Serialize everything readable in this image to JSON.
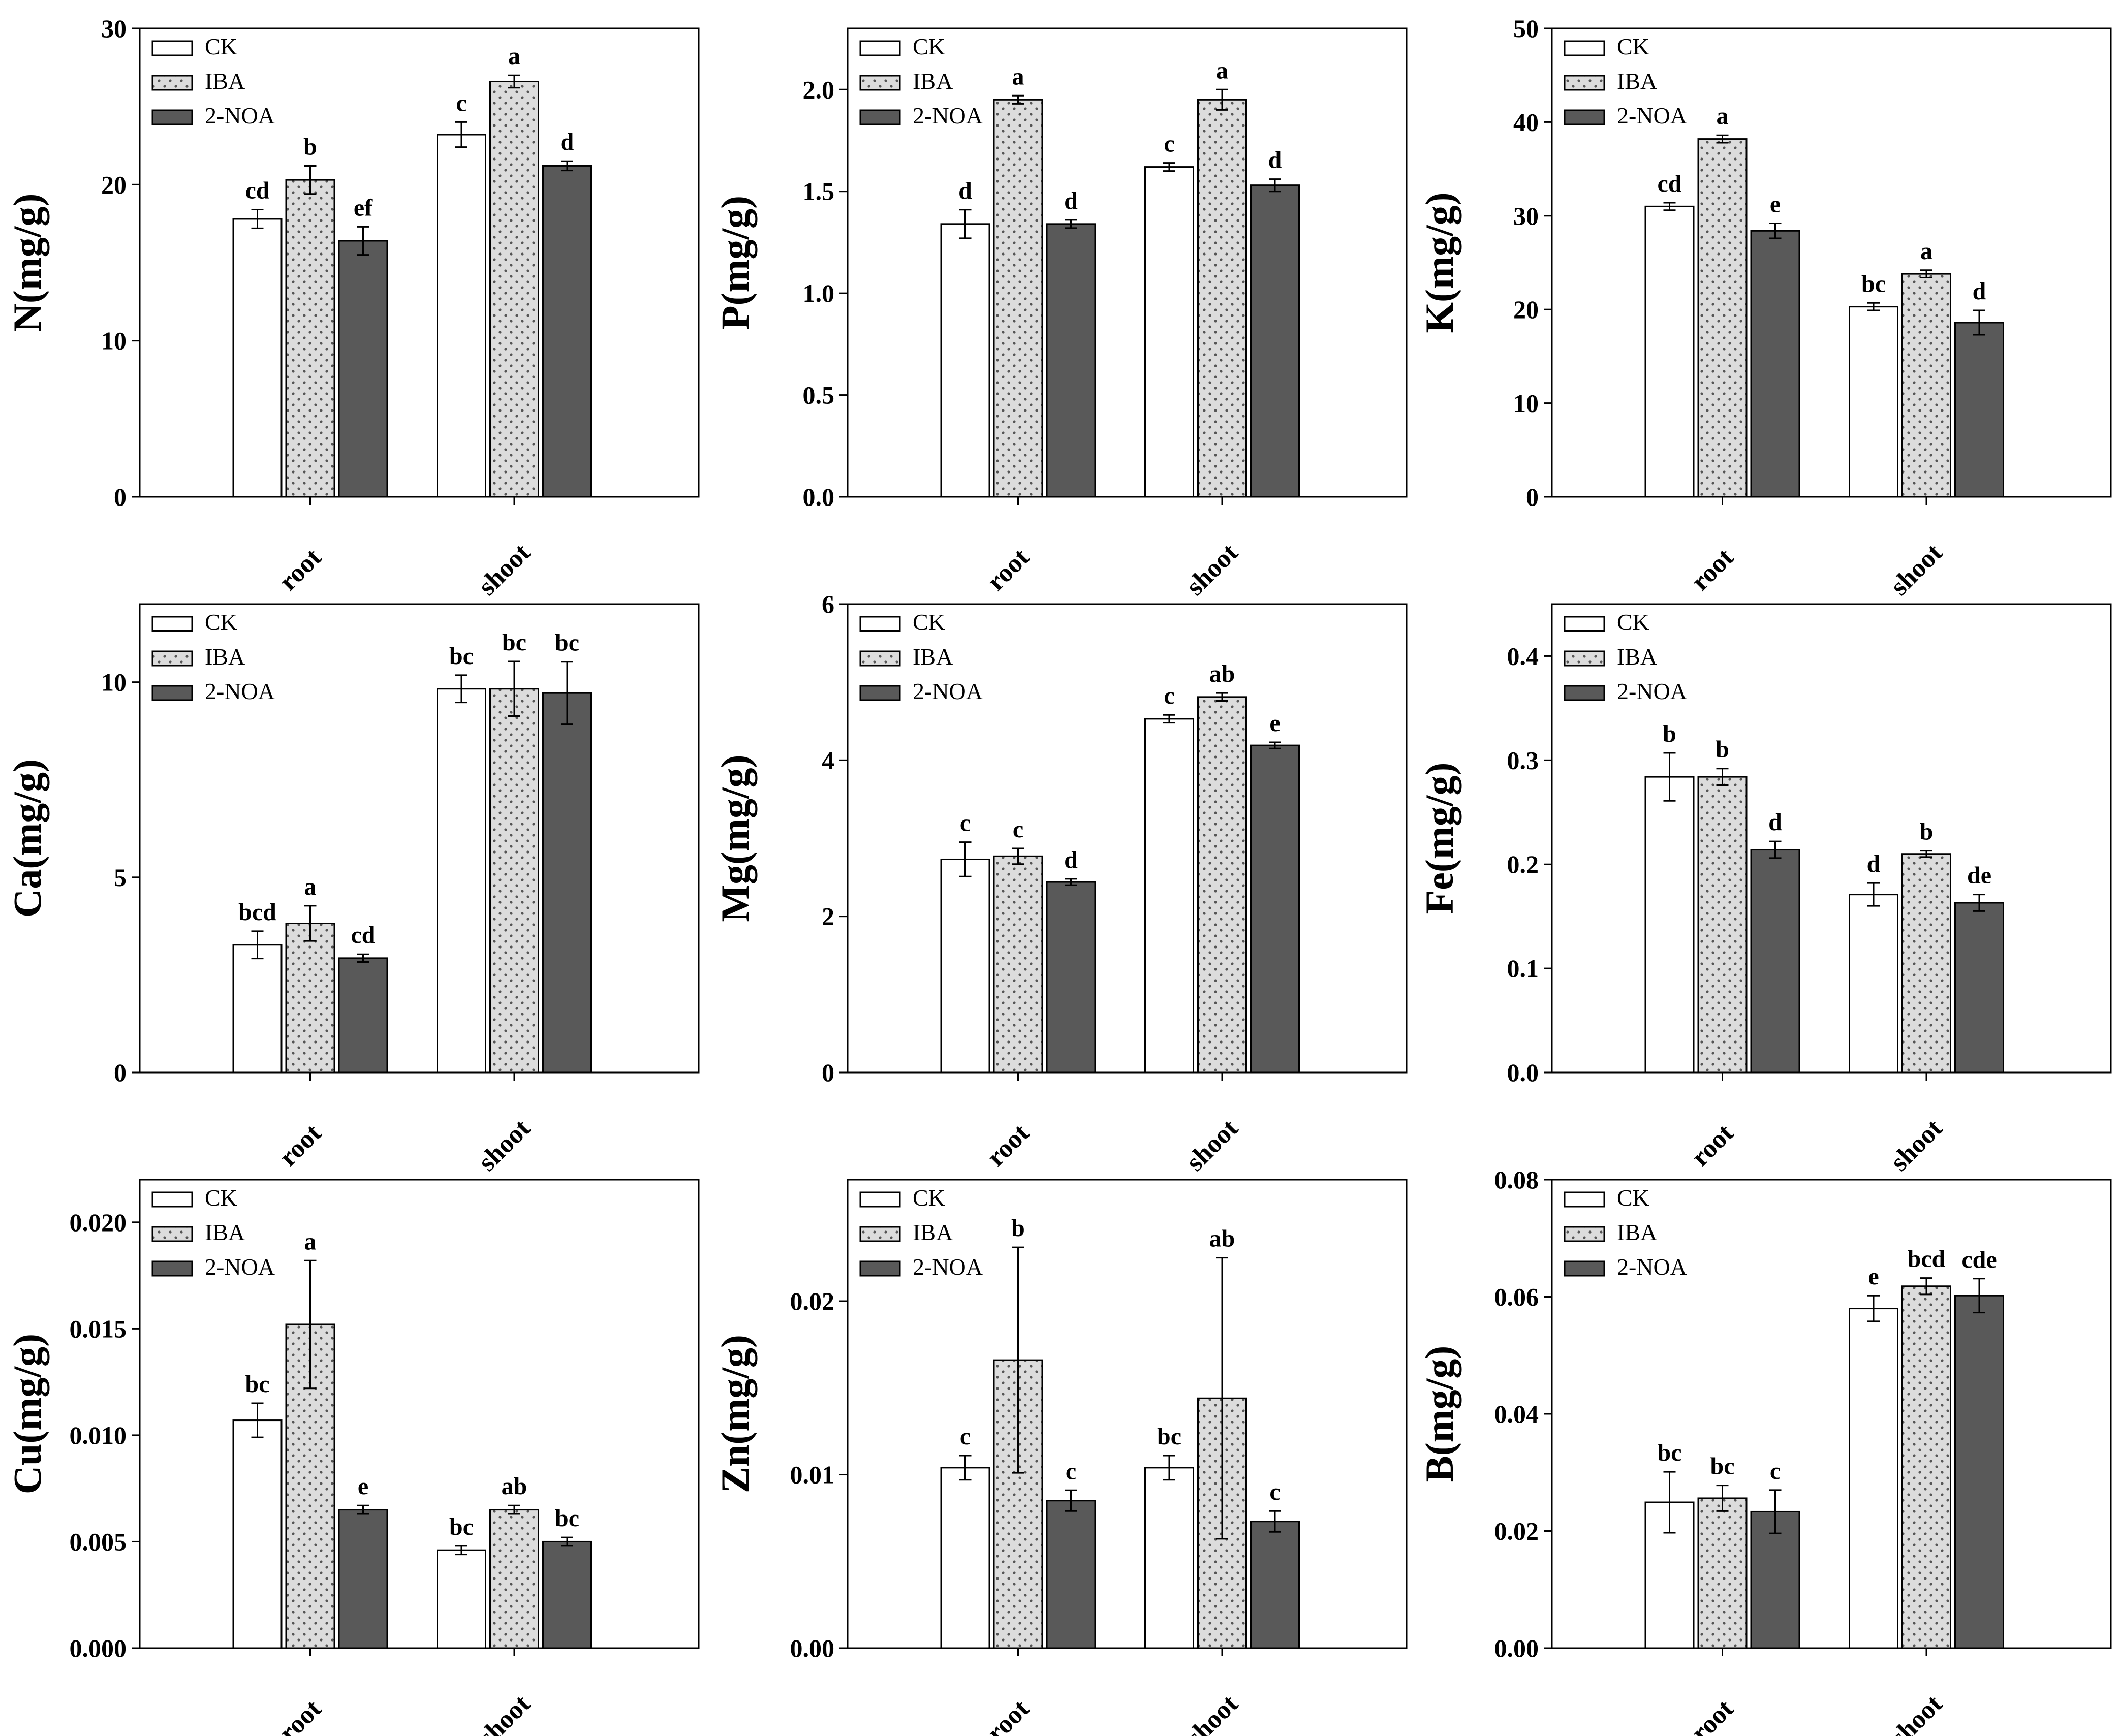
{
  "colors": {
    "CK": "#ffffff",
    "IBA": "#dcdcdc",
    "2-NOA": "#595959",
    "axis": "#000000"
  },
  "legend": [
    "CK",
    "IBA",
    "2-NOA"
  ],
  "chart_data": [
    {
      "type": "bar",
      "ylabel": "N(mg/g)",
      "categories": [
        "root",
        "shoot"
      ],
      "ylim": [
        0,
        30
      ],
      "yticks": [
        "0",
        "10",
        "20",
        "30"
      ],
      "series": [
        {
          "name": "CK",
          "values": [
            17.8,
            23.2
          ],
          "errors": [
            0.6,
            0.8
          ],
          "labels": [
            "cd",
            "c"
          ]
        },
        {
          "name": "IBA",
          "values": [
            20.3,
            26.6
          ],
          "errors": [
            0.9,
            0.4
          ],
          "labels": [
            "b",
            "a"
          ]
        },
        {
          "name": "2-NOA",
          "values": [
            16.4,
            21.2
          ],
          "errors": [
            0.9,
            0.3
          ],
          "labels": [
            "ef",
            "d"
          ]
        }
      ]
    },
    {
      "type": "bar",
      "ylabel": "P(mg/g)",
      "categories": [
        "root",
        "shoot"
      ],
      "ylim": [
        0,
        2.3
      ],
      "yticks": [
        "0.0",
        "0.5",
        "1.0",
        "1.5",
        "2.0"
      ],
      "series": [
        {
          "name": "CK",
          "values": [
            1.34,
            1.62
          ],
          "errors": [
            0.07,
            0.02
          ],
          "labels": [
            "d",
            "c"
          ]
        },
        {
          "name": "IBA",
          "values": [
            1.95,
            1.95
          ],
          "errors": [
            0.02,
            0.05
          ],
          "labels": [
            "a",
            "a"
          ]
        },
        {
          "name": "2-NOA",
          "values": [
            1.34,
            1.53
          ],
          "errors": [
            0.02,
            0.03
          ],
          "labels": [
            "d",
            "d"
          ]
        }
      ]
    },
    {
      "type": "bar",
      "ylabel": "K(mg/g)",
      "categories": [
        "root",
        "shoot"
      ],
      "ylim": [
        0,
        50
      ],
      "yticks": [
        "0",
        "10",
        "20",
        "30",
        "40",
        "50"
      ],
      "series": [
        {
          "name": "CK",
          "values": [
            31.0,
            20.3
          ],
          "errors": [
            0.4,
            0.4
          ],
          "labels": [
            "cd",
            "bc"
          ]
        },
        {
          "name": "IBA",
          "values": [
            38.2,
            23.8
          ],
          "errors": [
            0.4,
            0.4
          ],
          "labels": [
            "a",
            "a"
          ]
        },
        {
          "name": "2-NOA",
          "values": [
            28.4,
            18.6
          ],
          "errors": [
            0.8,
            1.3
          ],
          "labels": [
            "e",
            "d"
          ]
        }
      ]
    },
    {
      "type": "bar",
      "ylabel": "Ca(mg/g)",
      "categories": [
        "root",
        "shoot"
      ],
      "ylim": [
        0,
        12
      ],
      "yticks": [
        "0",
        "5",
        "10"
      ],
      "series": [
        {
          "name": "CK",
          "values": [
            3.27,
            9.83
          ],
          "errors": [
            0.35,
            0.35
          ],
          "labels": [
            "bcd",
            "bc"
          ]
        },
        {
          "name": "IBA",
          "values": [
            3.82,
            9.83
          ],
          "errors": [
            0.45,
            0.7
          ],
          "labels": [
            "a",
            "bc"
          ]
        },
        {
          "name": "2-NOA",
          "values": [
            2.93,
            9.72
          ],
          "errors": [
            0.1,
            0.8
          ],
          "labels": [
            "cd",
            "bc"
          ]
        }
      ]
    },
    {
      "type": "bar",
      "ylabel": "Mg(mg/g)",
      "categories": [
        "root",
        "shoot"
      ],
      "ylim": [
        0,
        6
      ],
      "yticks": [
        "0",
        "2",
        "4",
        "6"
      ],
      "series": [
        {
          "name": "CK",
          "values": [
            2.73,
            4.53
          ],
          "errors": [
            0.22,
            0.05
          ],
          "labels": [
            "c",
            "c"
          ]
        },
        {
          "name": "IBA",
          "values": [
            2.77,
            4.81
          ],
          "errors": [
            0.1,
            0.05
          ],
          "labels": [
            "c",
            "ab"
          ]
        },
        {
          "name": "2-NOA",
          "values": [
            2.44,
            4.19
          ],
          "errors": [
            0.04,
            0.04
          ],
          "labels": [
            "d",
            "e"
          ]
        }
      ]
    },
    {
      "type": "bar",
      "ylabel": "Fe(mg/g)",
      "categories": [
        "root",
        "shoot"
      ],
      "ylim": [
        0,
        0.45
      ],
      "yticks": [
        "0.0",
        "0.1",
        "0.2",
        "0.3",
        "0.4"
      ],
      "series": [
        {
          "name": "CK",
          "values": [
            0.284,
            0.171
          ],
          "errors": [
            0.023,
            0.011
          ],
          "labels": [
            "b",
            "d"
          ]
        },
        {
          "name": "IBA",
          "values": [
            0.284,
            0.21
          ],
          "errors": [
            0.008,
            0.003
          ],
          "labels": [
            "b",
            "b"
          ]
        },
        {
          "name": "2-NOA",
          "values": [
            0.214,
            0.163
          ],
          "errors": [
            0.008,
            0.008
          ],
          "labels": [
            "d",
            "de"
          ]
        }
      ]
    },
    {
      "type": "bar",
      "ylabel": "Cu(mg/g)",
      "categories": [
        "root",
        "shoot"
      ],
      "ylim": [
        0,
        0.022
      ],
      "yticks": [
        "0.000",
        "0.005",
        "0.010",
        "0.015",
        "0.020"
      ],
      "series": [
        {
          "name": "CK",
          "values": [
            0.0107,
            0.0046
          ],
          "errors": [
            0.0008,
            0.0002
          ],
          "labels": [
            "bc",
            "bc"
          ]
        },
        {
          "name": "IBA",
          "values": [
            0.0152,
            0.0065
          ],
          "errors": [
            0.003,
            0.0002
          ],
          "labels": [
            "a",
            "ab"
          ]
        },
        {
          "name": "2-NOA",
          "values": [
            0.0065,
            0.005
          ],
          "errors": [
            0.0002,
            0.0002
          ],
          "labels": [
            "e",
            "bc"
          ]
        }
      ]
    },
    {
      "type": "bar",
      "ylabel": "Zn(mg/g)",
      "categories": [
        "root",
        "shoot"
      ],
      "ylim": [
        0,
        0.027
      ],
      "yticks": [
        "0.00",
        "0.01",
        "0.02"
      ],
      "series": [
        {
          "name": "CK",
          "values": [
            0.0104,
            0.0104
          ],
          "errors": [
            0.0007,
            0.0007
          ],
          "labels": [
            "c",
            "bc"
          ]
        },
        {
          "name": "IBA",
          "values": [
            0.0166,
            0.0144
          ],
          "errors": [
            0.0065,
            0.0081
          ],
          "labels": [
            "b",
            "ab"
          ]
        },
        {
          "name": "2-NOA",
          "values": [
            0.0085,
            0.0073
          ],
          "errors": [
            0.0006,
            0.0006
          ],
          "labels": [
            "c",
            "c"
          ]
        }
      ]
    },
    {
      "type": "bar",
      "ylabel": "B(mg/g)",
      "categories": [
        "root",
        "shoot"
      ],
      "ylim": [
        0,
        0.08
      ],
      "yticks": [
        "0.00",
        "0.02",
        "0.04",
        "0.06",
        "0.08"
      ],
      "series": [
        {
          "name": "CK",
          "values": [
            0.0249,
            0.058
          ],
          "errors": [
            0.0052,
            0.0022
          ],
          "labels": [
            "bc",
            "e"
          ]
        },
        {
          "name": "IBA",
          "values": [
            0.0256,
            0.0618
          ],
          "errors": [
            0.0022,
            0.0014
          ],
          "labels": [
            "bc",
            "bcd"
          ]
        },
        {
          "name": "2-NOA",
          "values": [
            0.0233,
            0.0602
          ],
          "errors": [
            0.0037,
            0.0029
          ],
          "labels": [
            "c",
            "cde"
          ]
        }
      ]
    }
  ]
}
